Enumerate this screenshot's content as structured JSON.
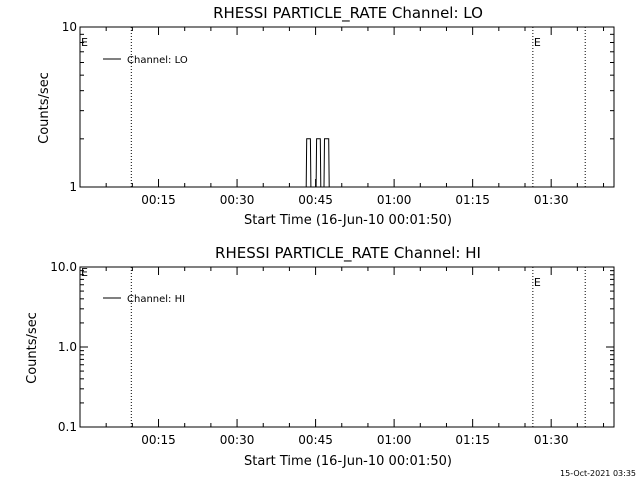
{
  "chart_data": [
    {
      "type": "line",
      "title": "RHESSI PARTICLE_RATE Channel: LO",
      "xlabel": "Start Time (16-Jun-10 00:01:50)",
      "ylabel": "Counts/sec",
      "y_scale": "log",
      "ylim": [
        1,
        10
      ],
      "y_ticks": [
        "10",
        "1"
      ],
      "xlim_minutes_from_start": [
        0,
        102
      ],
      "x_ticks": [
        {
          "label": "00:15",
          "minutes": 15
        },
        {
          "label": "00:30",
          "minutes": 30
        },
        {
          "label": "00:45",
          "minutes": 45
        },
        {
          "label": "01:00",
          "minutes": 60
        },
        {
          "label": "01:15",
          "minutes": 75
        },
        {
          "label": "01:30",
          "minutes": 90
        }
      ],
      "legend": "top-left",
      "series": [
        {
          "name": "Channel: LO",
          "color": "#000000",
          "points": [
            [
              0,
              1
            ],
            [
              43.2,
              1
            ],
            [
              43.3,
              2
            ],
            [
              44.0,
              2
            ],
            [
              44.1,
              1
            ],
            [
              45.1,
              1
            ],
            [
              45.2,
              2
            ],
            [
              45.9,
              2
            ],
            [
              46.0,
              1
            ],
            [
              46.6,
              1
            ],
            [
              46.7,
              2
            ],
            [
              47.5,
              2
            ],
            [
              47.6,
              1
            ],
            [
              102,
              1
            ]
          ]
        }
      ],
      "markers": [
        {
          "minutes": 9.8,
          "label": ""
        },
        {
          "minutes": 86.5,
          "label": "E"
        },
        {
          "minutes": 96.5,
          "label": ""
        }
      ],
      "left_marker_label": "E"
    },
    {
      "type": "line",
      "title": "RHESSI PARTICLE_RATE Channel: HI",
      "xlabel": "Start Time (16-Jun-10 00:01:50)",
      "ylabel": "Counts/sec",
      "y_scale": "log",
      "ylim": [
        0.1,
        10
      ],
      "y_ticks": [
        "10.0",
        "1.0",
        "0.1"
      ],
      "xlim_minutes_from_start": [
        0,
        102
      ],
      "x_ticks": [
        {
          "label": "00:15",
          "minutes": 15
        },
        {
          "label": "00:30",
          "minutes": 30
        },
        {
          "label": "00:45",
          "minutes": 45
        },
        {
          "label": "01:00",
          "minutes": 60
        },
        {
          "label": "01:15",
          "minutes": 75
        },
        {
          "label": "01:30",
          "minutes": 90
        }
      ],
      "legend": "top-left",
      "series": [
        {
          "name": "Channel: HI",
          "color": "#000000",
          "points": []
        }
      ],
      "markers": [
        {
          "minutes": 9.8,
          "label": ""
        },
        {
          "minutes": 86.5,
          "label": "E"
        },
        {
          "minutes": 96.5,
          "label": ""
        }
      ],
      "left_marker_label": "E"
    }
  ],
  "footer": {
    "timestamp": "15-Oct-2021 03:35"
  }
}
